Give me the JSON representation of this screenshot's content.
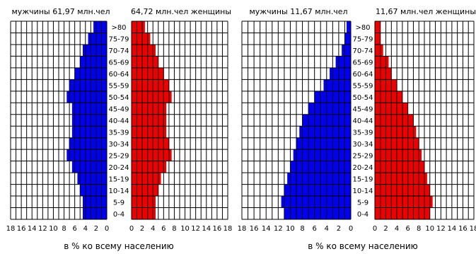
{
  "chart_data": [
    {
      "type": "bar",
      "subtype": "population-pyramid",
      "age_groups": [
        "0-4",
        "5-9",
        "10-14",
        "15-19",
        "20-24",
        "25-29",
        "30-34",
        "35-39",
        "40-44",
        "45-49",
        "50-54",
        "55-59",
        "60-64",
        "65-69",
        "70-74",
        "75-79",
        ">80"
      ],
      "age_tick_labels": [
        ">80",
        "75-79",
        "70-74",
        "65-69",
        "60-64",
        "55-59",
        "50-54",
        "45-49",
        "40-44",
        "35-39",
        "30-34",
        "25-29",
        "20-24",
        "15-19",
        "10-14",
        "5-9",
        "0-4"
      ],
      "male_label": "мужчины 61,97 млн.чел",
      "female_label": "64,72 млн.чел женщины",
      "xlabel": "в % ко всему населению",
      "male_ticks": [
        "18",
        "16",
        "14",
        "12",
        "10",
        "8",
        "6",
        "4",
        "2",
        "0"
      ],
      "female_ticks": [
        "0",
        "2",
        "4",
        "6",
        "8",
        "10",
        "12",
        "14",
        "16",
        "18"
      ],
      "xlim": [
        0,
        18
      ],
      "grid": true,
      "series": [
        {
          "name": "мужчины",
          "color": "#0000ee",
          "values": [
            4.5,
            4.5,
            5,
            5.5,
            6.5,
            7.5,
            7,
            6.5,
            6.5,
            6.5,
            7.5,
            7,
            6,
            5,
            4.5,
            3.5,
            2.5
          ]
        },
        {
          "name": "женщины",
          "color": "#ee0000",
          "values": [
            4.5,
            4.5,
            5,
            5.5,
            6.5,
            7.5,
            7,
            6.5,
            6.5,
            6.5,
            7.5,
            7,
            6,
            5,
            4.5,
            3.5,
            2.5
          ]
        }
      ]
    },
    {
      "type": "bar",
      "subtype": "population-pyramid",
      "age_groups": [
        "0-4",
        "5-9",
        "10-14",
        "15-19",
        "20-24",
        "25-29",
        "30-34",
        "35-39",
        "40-44",
        "45-49",
        "50-54",
        "55-59",
        "60-64",
        "65-69",
        "70-74",
        "75-79",
        ">80"
      ],
      "age_tick_labels": [
        ">80",
        "75-79",
        "70-74",
        "65-69",
        "60-64",
        "55-59",
        "50-54",
        "45-49",
        "40-44",
        "35-39",
        "30-34",
        "25-29",
        "20-24",
        "15-19",
        "10-14",
        "5-9",
        "0-4"
      ],
      "male_label": "мужчины 11,67 млн.чел",
      "female_label": "11,67 млн.чел женщины",
      "xlabel": "в % ко всему населению",
      "male_ticks": [
        "18",
        "16",
        "14",
        "12",
        "10",
        "8",
        "6",
        "4",
        "2",
        "0"
      ],
      "female_ticks": [
        "0",
        "2",
        "4",
        "6",
        "8",
        "10",
        "12",
        "14",
        "16",
        "18"
      ],
      "xlim": [
        0,
        18
      ],
      "grid": true,
      "series": [
        {
          "name": "мужчины",
          "color": "#0000ee",
          "values": [
            11,
            11.5,
            11,
            10.5,
            10,
            9.5,
            9,
            8.5,
            8,
            7,
            6,
            4.5,
            3.5,
            2.5,
            1.5,
            1,
            0.7
          ]
        },
        {
          "name": "женщины",
          "color": "#ee0000",
          "values": [
            10,
            10.5,
            10,
            9.5,
            9,
            8.5,
            8,
            7.5,
            7,
            6,
            5,
            4,
            3,
            2.5,
            1.5,
            1,
            1
          ]
        }
      ]
    }
  ]
}
